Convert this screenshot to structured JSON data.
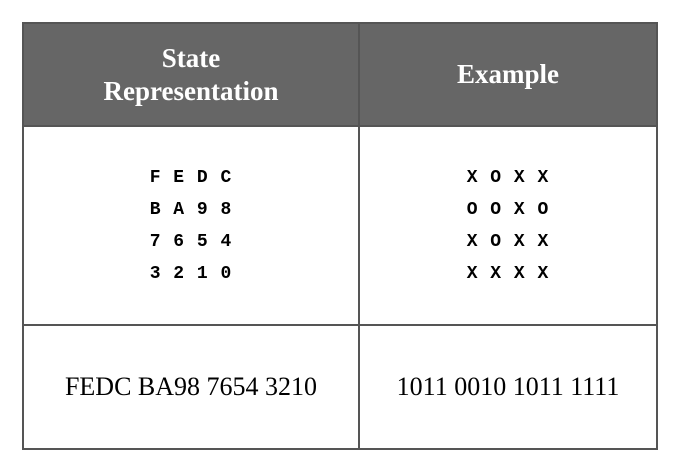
{
  "table": {
    "headers": [
      {
        "lines": [
          "State",
          "Representation"
        ]
      },
      {
        "lines": [
          "Example"
        ]
      }
    ],
    "state_grid": [
      "F E D C",
      "B A 9 8",
      "7 6 5 4",
      "3 2 1 0"
    ],
    "example_grid": [
      "X O X X",
      "O O X O",
      "X O X X",
      "X X X X"
    ],
    "state_serial": "FEDC BA98 7654 3210",
    "example_serial": "1011 0010 1011 1111"
  }
}
